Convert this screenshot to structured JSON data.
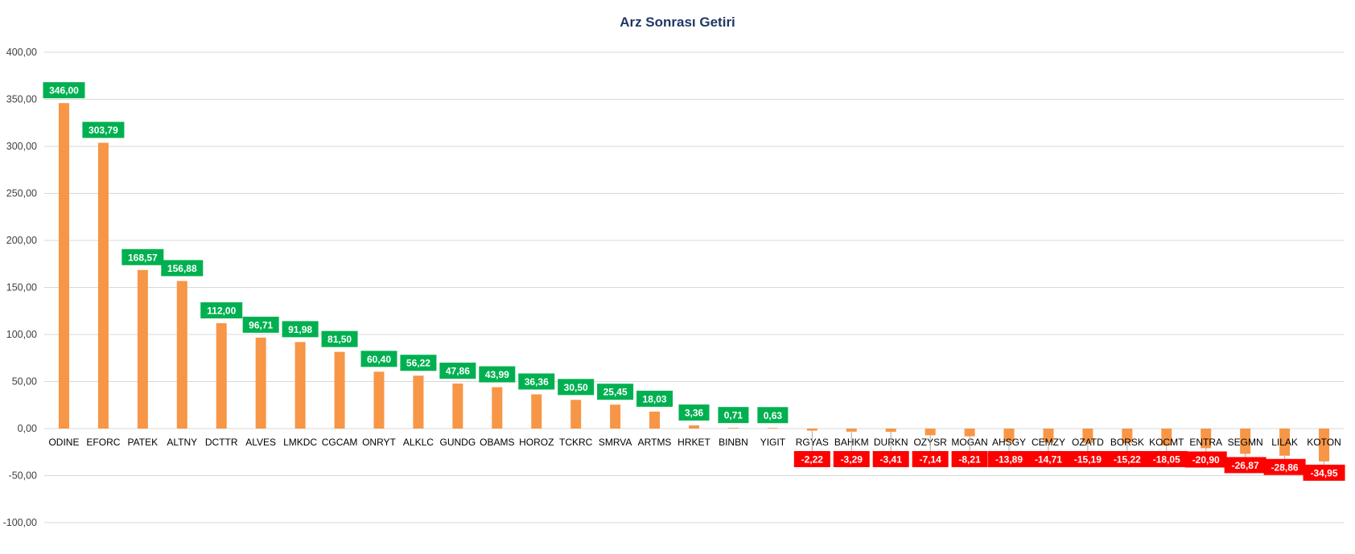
{
  "chart_data": {
    "type": "bar",
    "title": "Arz Sonrası Getiri",
    "xlabel": "",
    "ylabel": "",
    "ylim": [
      -100,
      400
    ],
    "ytick_labels": [
      "400,00",
      "350,00",
      "300,00",
      "250,00",
      "200,00",
      "150,00",
      "100,00",
      "50,00",
      "0,00",
      "-50,00",
      "-100,00"
    ],
    "grid": true,
    "legend": "none",
    "categories": [
      "ODINE",
      "EFORC",
      "PATEK",
      "ALTNY",
      "DCTTR",
      "ALVES",
      "LMKDC",
      "CGCAM",
      "ONRYT",
      "ALKLC",
      "GUNDG",
      "OBAMS",
      "HOROZ",
      "TCKRC",
      "SMRVA",
      "ARTMS",
      "HRKET",
      "BINBN",
      "YIGIT",
      "RGYAS",
      "BAHKM",
      "DURKN",
      "OZYSR",
      "MOGAN",
      "AHSGY",
      "CEMZY",
      "OZATD",
      "BORSK",
      "KOCMT",
      "ENTRA",
      "SEGMN",
      "LILAK",
      "KOTON"
    ],
    "values": [
      346.0,
      303.79,
      168.57,
      156.88,
      112.0,
      96.71,
      91.98,
      81.5,
      60.4,
      56.22,
      47.86,
      43.99,
      36.36,
      30.5,
      25.45,
      18.03,
      3.36,
      0.71,
      0.63,
      -2.22,
      -3.29,
      -3.41,
      -7.14,
      -8.21,
      -13.89,
      -14.71,
      -15.19,
      -15.22,
      -18.05,
      -20.9,
      -26.87,
      -28.86,
      -34.95
    ],
    "data_labels": [
      "346,00",
      "303,79",
      "168,57",
      "156,88",
      "112,00",
      "96,71",
      "91,98",
      "81,50",
      "60,40",
      "56,22",
      "47,86",
      "43,99",
      "36,36",
      "30,50",
      "25,45",
      "18,03",
      "3,36",
      "0,71",
      "0,63",
      "-2,22",
      "-3,29",
      "-3,41",
      "-7,14",
      "-8,21",
      "-13,89",
      "-14,71",
      "-15,19",
      "-15,22",
      "-18,05",
      "-20,90",
      "-26,87",
      "-28,86",
      "-34,95"
    ],
    "colors": {
      "bar": "#f79646",
      "positive_label": "#00b050",
      "negative_label": "#ff0000",
      "grid": "#d9d9d9",
      "title": "#1f3864"
    }
  }
}
